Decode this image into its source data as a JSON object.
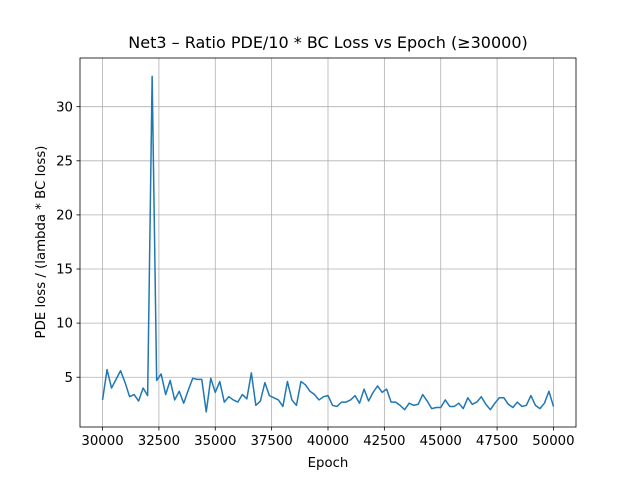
{
  "chart_data": {
    "type": "line",
    "title": "Net3 – Ratio PDE/10 * BC Loss vs Epoch (≥30000)",
    "xlabel": "Epoch",
    "ylabel": "PDE loss  /  (lambda * BC loss)",
    "xlim": [
      29000,
      51000
    ],
    "ylim": [
      0.4,
      34.5
    ],
    "xticks": [
      30000,
      32500,
      35000,
      37500,
      40000,
      42500,
      45000,
      47500,
      50000
    ],
    "xtick_labels": [
      "30000",
      "32500",
      "35000",
      "37500",
      "40000",
      "42500",
      "45000",
      "47500",
      "50000"
    ],
    "yticks": [
      5,
      10,
      15,
      20,
      25,
      30
    ],
    "ytick_labels": [
      "5",
      "10",
      "15",
      "20",
      "25",
      "30"
    ],
    "grid": true,
    "line_color": "#1f77b4",
    "series": [
      {
        "x": [
          30000,
          30200,
          30400,
          30600,
          30800,
          31000,
          31200,
          31400,
          31600,
          31800,
          32000,
          32200,
          32400,
          32600,
          32800,
          33000,
          33200,
          33400,
          33600,
          33800,
          34000,
          34200,
          34400,
          34600,
          34800,
          35000,
          35200,
          35400,
          35600,
          35800,
          36000,
          36200,
          36400,
          36600,
          36800,
          37000,
          37200,
          37400,
          37600,
          37800,
          38000,
          38200,
          38400,
          38600,
          38800,
          39000,
          39200,
          39400,
          39600,
          39800,
          40000,
          40200,
          40400,
          40600,
          40800,
          41000,
          41200,
          41400,
          41600,
          41800,
          42000,
          42200,
          42400,
          42600,
          42800,
          43000,
          43200,
          43400,
          43600,
          43800,
          44000,
          44200,
          44400,
          44600,
          44800,
          45000,
          45200,
          45400,
          45600,
          45800,
          46000,
          46200,
          46400,
          46600,
          46800,
          47000,
          47200,
          47400,
          47600,
          47800,
          48000,
          48200,
          48400,
          48600,
          48800,
          49000,
          49200,
          49400,
          49600,
          49800,
          50000
        ],
        "values": [
          2.9,
          5.7,
          4.0,
          4.8,
          5.6,
          4.5,
          3.2,
          3.4,
          2.8,
          4.0,
          3.3,
          32.8,
          4.7,
          5.3,
          3.4,
          4.7,
          2.9,
          3.7,
          2.6,
          3.8,
          4.9,
          4.8,
          4.8,
          1.8,
          4.9,
          3.6,
          4.6,
          2.7,
          3.2,
          2.9,
          2.7,
          3.4,
          3.0,
          5.4,
          2.4,
          2.8,
          4.5,
          3.3,
          3.1,
          2.9,
          2.3,
          4.6,
          2.9,
          2.4,
          4.6,
          4.3,
          3.7,
          3.4,
          2.9,
          3.2,
          3.3,
          2.4,
          2.3,
          2.7,
          2.7,
          2.9,
          3.3,
          2.6,
          3.9,
          2.8,
          3.6,
          4.2,
          3.6,
          3.9,
          2.7,
          2.7,
          2.4,
          2.0,
          2.6,
          2.4,
          2.5,
          3.4,
          2.8,
          2.1,
          2.2,
          2.2,
          2.9,
          2.3,
          2.3,
          2.6,
          2.1,
          3.1,
          2.5,
          2.7,
          3.2,
          2.5,
          2.0,
          2.6,
          3.1,
          3.1,
          2.5,
          2.2,
          2.7,
          2.3,
          2.4,
          3.3,
          2.4,
          2.1,
          2.6,
          3.7,
          2.3
        ]
      }
    ]
  }
}
